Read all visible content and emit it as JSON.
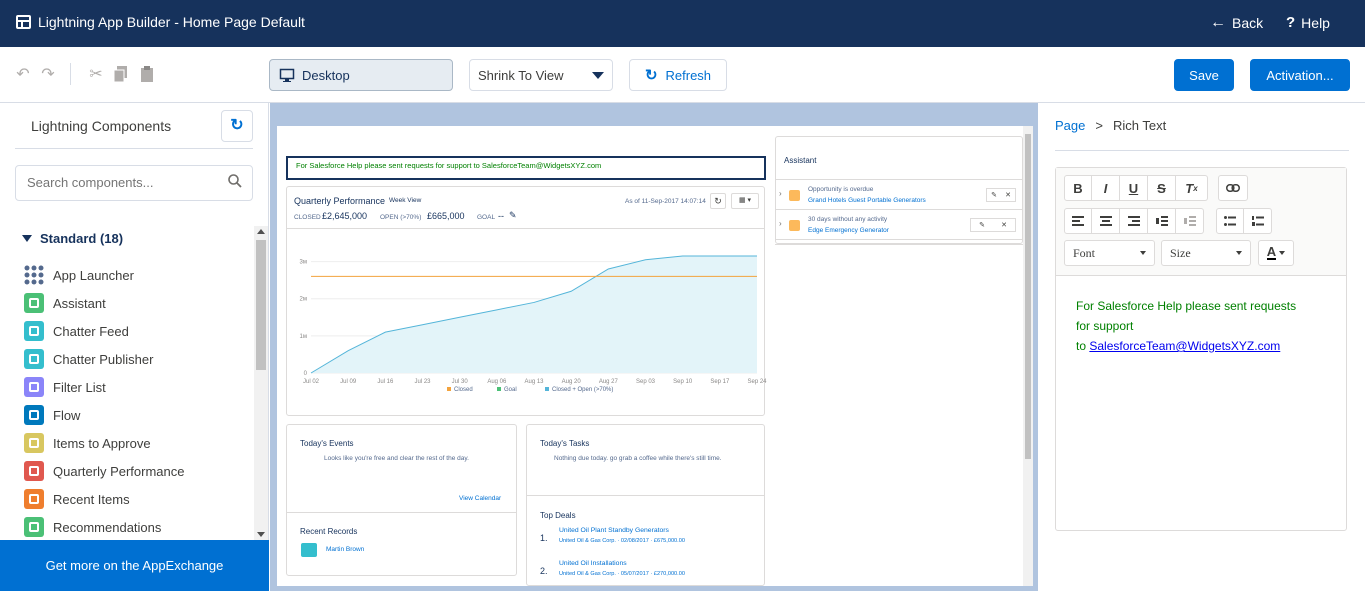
{
  "header": {
    "title": "Lightning App Builder - Home Page Default",
    "back_label": "Back",
    "help_label": "Help"
  },
  "toolbar": {
    "device_label": "Desktop",
    "view_select": "Shrink To View",
    "refresh_label": "Refresh",
    "save_label": "Save",
    "activation_label": "Activation..."
  },
  "left_panel": {
    "title": "Lightning Components",
    "search_placeholder": "Search components...",
    "section_label": "Standard (18)",
    "items": [
      {
        "label": "App Launcher",
        "icon": "app-launcher-icon",
        "color": "#54698d"
      },
      {
        "label": "Assistant",
        "icon": "assistant-icon",
        "color": "#4bc076"
      },
      {
        "label": "Chatter Feed",
        "icon": "chatter-feed-icon",
        "color": "#34becd"
      },
      {
        "label": "Chatter Publisher",
        "icon": "chatter-publisher-icon",
        "color": "#34becd"
      },
      {
        "label": "Filter List",
        "icon": "filter-list-icon",
        "color": "#8b85f9"
      },
      {
        "label": "Flow",
        "icon": "flow-icon",
        "color": "#0079bc"
      },
      {
        "label": "Items to Approve",
        "icon": "items-to-approve-icon",
        "color": "#d8c760"
      },
      {
        "label": "Quarterly Performance",
        "icon": "quarterly-performance-icon",
        "color": "#e0584f"
      },
      {
        "label": "Recent Items",
        "icon": "recent-items-icon",
        "color": "#ef7e2e"
      },
      {
        "label": "Recommendations",
        "icon": "recommendations-icon",
        "color": "#4bc076"
      }
    ],
    "appexchange_label": "Get more on the AppExchange"
  },
  "canvas": {
    "rich_text": "For Salesforce Help please sent requests for support to SalesforceTeam@WidgetsXYZ.com",
    "qp": {
      "title": "Quarterly Performance",
      "view": "Week View",
      "asof": "As of 11-Sep-2017 14:07:14",
      "closed_label": "CLOSED",
      "closed_value": "£2,645,000",
      "open_label": "OPEN (>70%)",
      "open_value": "£665,000",
      "goal_label": "GOAL",
      "goal_value": "--",
      "y_ticks": [
        "3м",
        "2м",
        "1м",
        "0"
      ],
      "x_ticks": [
        "Jul 02",
        "Jul 09",
        "Jul 16",
        "Jul 23",
        "Jul 30",
        "Aug 06",
        "Aug 13",
        "Aug 20",
        "Aug 27",
        "Sep 03",
        "Sep 10",
        "Sep 17",
        "Sep 24"
      ],
      "legend": [
        "Closed",
        "Goal",
        "Closed + Open (>70%)"
      ]
    },
    "assistant": {
      "title": "Assistant",
      "items": [
        {
          "title": "Opportunity is overdue",
          "link": "Grand Hotels Guest Portable Generators"
        },
        {
          "title": "30 days without any activity",
          "link": "Edge Emergency Generator"
        }
      ]
    },
    "events": {
      "title": "Today's Events",
      "text": "Looks like you're free and clear the rest of the day.",
      "link": "View Calendar"
    },
    "tasks": {
      "title": "Today's Tasks",
      "text": "Nothing due today. go grab a coffee while there's still time."
    },
    "recent": {
      "title": "Recent Records",
      "item": "Martin Brown"
    },
    "deals": {
      "title": "Top Deals",
      "items": [
        {
          "num": "1.",
          "name": "United Oil Plant Standby Generators",
          "meta": "United Oil & Gas Corp. · 02/08/2017 · £675,000.00"
        },
        {
          "num": "2.",
          "name": "United Oil Installations",
          "meta": "United Oil & Gas Corp. · 05/07/2017 · £270,000.00"
        }
      ]
    }
  },
  "chart_data": {
    "type": "line",
    "x": [
      "Jul 02",
      "Jul 09",
      "Jul 16",
      "Jul 23",
      "Jul 30",
      "Aug 06",
      "Aug 13",
      "Aug 20",
      "Aug 27",
      "Sep 03",
      "Sep 10",
      "Sep 17",
      "Sep 24"
    ],
    "series": [
      {
        "name": "Closed + Open (>70%)",
        "values": [
          0,
          0.6,
          1.1,
          1.3,
          1.5,
          1.7,
          1.9,
          2.2,
          2.8,
          3.05,
          3.15,
          3.15,
          3.15
        ],
        "color": "#54b5d9"
      },
      {
        "name": "Goal",
        "values": [
          2.6,
          2.6,
          2.6,
          2.6,
          2.6,
          2.6,
          2.6,
          2.6,
          2.6,
          2.6,
          2.6,
          2.6,
          2.6
        ],
        "color": "#f3a33d"
      }
    ],
    "ylim": [
      0,
      3.5
    ],
    "legend_position": "bottom",
    "grid": true
  },
  "right_panel": {
    "breadcrumb_page": "Page",
    "breadcrumb_sep": ">",
    "breadcrumb_current": "Rich Text",
    "font_label": "Font",
    "size_label": "Size",
    "content_line1": "For Salesforce Help please sent requests",
    "content_line2": "for support",
    "content_to": "to",
    "content_link": "SalesforceTeam@WidgetsXYZ.com",
    "content_color": "#008000"
  },
  "colors": {
    "header_bg": "#16325c",
    "brand": "#0070d2",
    "canvas_bg": "#b0c4df"
  }
}
